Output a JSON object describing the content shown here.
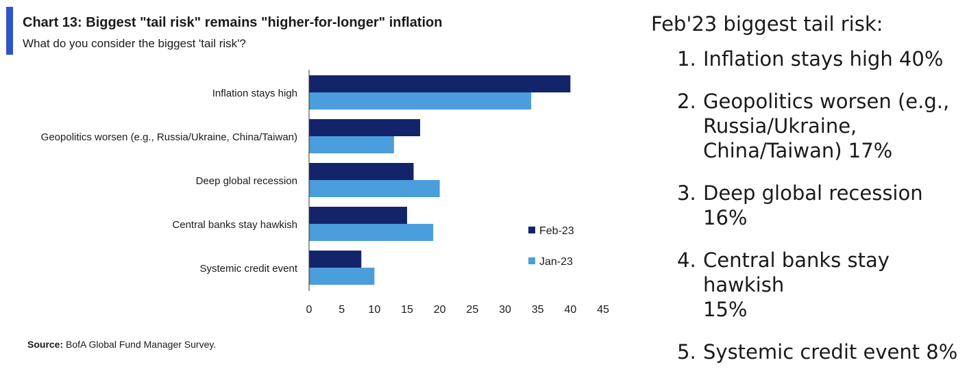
{
  "chart_data": {
    "type": "bar",
    "orientation": "horizontal",
    "title": "Chart 13: Biggest \"tail risk\" remains \"higher-for-longer\" inflation",
    "subtitle": "What do you consider the biggest 'tail risk'?",
    "categories": [
      "Inflation stays high",
      "Geopolitics worsen (e.g., Russia/Ukraine, China/Taiwan)",
      "Deep global recession",
      "Central banks stay hawkish",
      "Systemic credit event"
    ],
    "series": [
      {
        "name": "Feb-23",
        "color": "#14246b",
        "values": [
          40,
          17,
          16,
          15,
          8
        ]
      },
      {
        "name": "Jan-23",
        "color": "#4a9edb",
        "values": [
          34,
          13,
          20,
          19,
          10
        ]
      }
    ],
    "xlim": [
      0,
      45
    ],
    "xticks": [
      0,
      5,
      10,
      15,
      20,
      25,
      30,
      35,
      40,
      45
    ],
    "xlabel": "",
    "ylabel": "",
    "grid": false,
    "legend_position": "right",
    "source_label": "Source:",
    "source_text": "BofA Global Fund Manager Survey."
  },
  "panel": {
    "heading": "Feb'23 biggest tail risk:",
    "items": [
      {
        "num": "1.",
        "lines": [
          "Inflation stays high 40%"
        ]
      },
      {
        "num": "2.",
        "lines": [
          "Geopolitics worsen (e.g.,",
          "Russia/Ukraine,",
          "China/Taiwan) 17%"
        ]
      },
      {
        "num": "3.",
        "lines": [
          "Deep global recession 16%"
        ]
      },
      {
        "num": "4.",
        "lines": [
          "Central banks stay hawkish",
          "15%"
        ]
      },
      {
        "num": "5.",
        "lines": [
          "Systemic credit event 8%"
        ]
      }
    ]
  }
}
